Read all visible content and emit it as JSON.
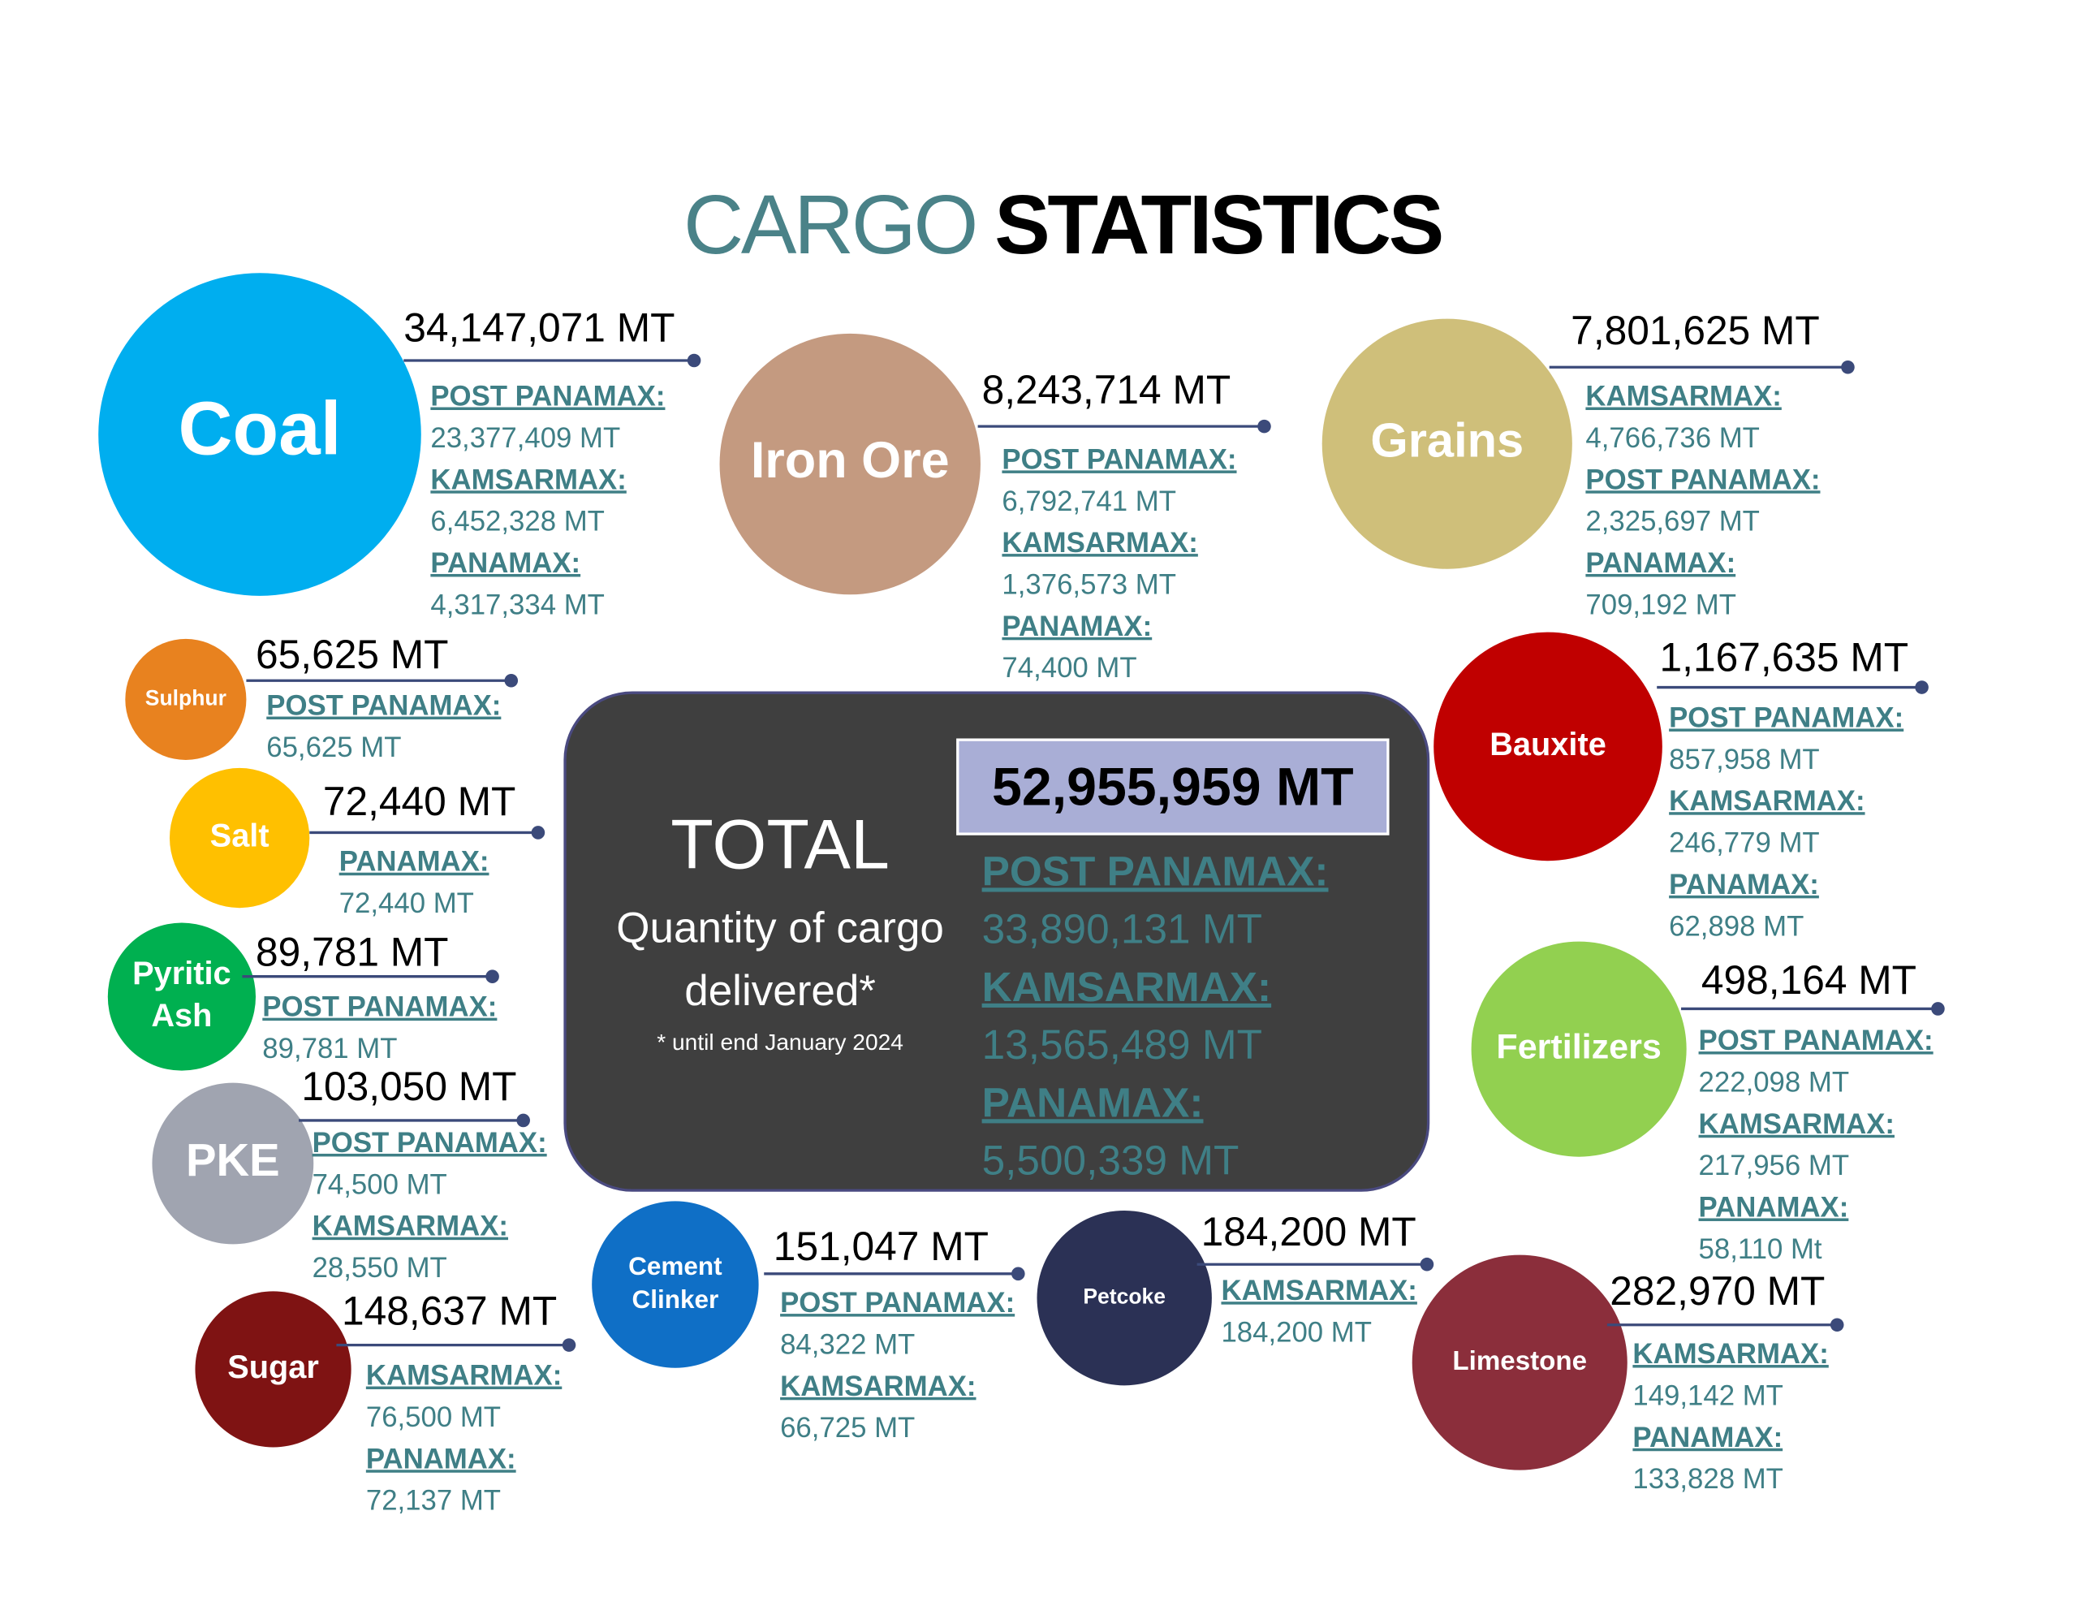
{
  "title": {
    "light": "CARGO",
    "bold": "STATISTICS"
  },
  "total": {
    "label": "TOTAL",
    "subtitle": [
      "Quantity of cargo",
      "delivered*"
    ],
    "note": "* until end January 2024",
    "amount": "52,955,959 MT",
    "breakdown": [
      {
        "class": "POST PANAMAX:",
        "amount": "33,890,131 MT"
      },
      {
        "class": "KAMSARMAX:",
        "amount": "13,565,489 MT"
      },
      {
        "class": "PANAMAX:",
        "amount": "5,500,339 MT"
      }
    ]
  },
  "cargos": [
    {
      "name": [
        "Coal"
      ],
      "total": "34,147,071 MT",
      "breakdown": [
        {
          "class": "POST PANAMAX:",
          "amount": "23,377,409 MT"
        },
        {
          "class": "KAMSARMAX:",
          "amount": "6,452,328 MT"
        },
        {
          "class": "PANAMAX:",
          "amount": "4,317,334 MT"
        }
      ]
    },
    {
      "name": [
        "Iron Ore"
      ],
      "total": "8,243,714 MT",
      "breakdown": [
        {
          "class": "POST PANAMAX:",
          "amount": "6,792,741 MT"
        },
        {
          "class": "KAMSARMAX:",
          "amount": "1,376,573 MT"
        },
        {
          "class": "PANAMAX:",
          "amount": "74,400 MT"
        }
      ]
    },
    {
      "name": [
        "Grains"
      ],
      "total": "7,801,625 MT",
      "breakdown": [
        {
          "class": "KAMSARMAX:",
          "amount": "4,766,736 MT"
        },
        {
          "class": "POST PANAMAX:",
          "amount": "2,325,697 MT"
        },
        {
          "class": "PANAMAX:",
          "amount": "709,192 MT"
        }
      ]
    },
    {
      "name": [
        "Sulphur"
      ],
      "total": "65,625 MT",
      "breakdown": [
        {
          "class": "POST PANAMAX:",
          "amount": "65,625 MT"
        }
      ]
    },
    {
      "name": [
        "Salt"
      ],
      "total": "72,440 MT",
      "breakdown": [
        {
          "class": "PANAMAX:",
          "amount": "72,440 MT"
        }
      ]
    },
    {
      "name": [
        "Pyritic",
        "Ash"
      ],
      "total": "89,781 MT",
      "breakdown": [
        {
          "class": "POST PANAMAX:",
          "amount": "89,781 MT"
        }
      ]
    },
    {
      "name": [
        "PKE"
      ],
      "total": "103,050 MT",
      "breakdown": [
        {
          "class": "POST PANAMAX:",
          "amount": "74,500 MT"
        },
        {
          "class": "KAMSARMAX:",
          "amount": "28,550 MT"
        }
      ]
    },
    {
      "name": [
        "Sugar"
      ],
      "total": "148,637 MT",
      "breakdown": [
        {
          "class": "KAMSARMAX:",
          "amount": "76,500 MT"
        },
        {
          "class": "PANAMAX:",
          "amount": "72,137 MT"
        }
      ]
    },
    {
      "name": [
        "Cement",
        "Clinker"
      ],
      "total": "151,047 MT",
      "breakdown": [
        {
          "class": "POST PANAMAX:",
          "amount": "84,322 MT"
        },
        {
          "class": "KAMSARMAX:",
          "amount": "66,725 MT"
        }
      ]
    },
    {
      "name": [
        "Petcoke"
      ],
      "total": "184,200 MT",
      "breakdown": [
        {
          "class": "KAMSARMAX:",
          "amount": "184,200 MT"
        }
      ]
    },
    {
      "name": [
        "Limestone"
      ],
      "total": "282,970 MT",
      "breakdown": [
        {
          "class": "KAMSARMAX:",
          "amount": "149,142 MT"
        },
        {
          "class": "PANAMAX:",
          "amount": "133,828 MT"
        }
      ]
    },
    {
      "name": [
        "Bauxite"
      ],
      "total": "1,167,635 MT",
      "breakdown": [
        {
          "class": "POST PANAMAX:",
          "amount": "857,958 MT"
        },
        {
          "class": "KAMSARMAX:",
          "amount": "246,779 MT"
        },
        {
          "class": "PANAMAX:",
          "amount": "62,898 MT"
        }
      ]
    },
    {
      "name": [
        "Fertilizers"
      ],
      "total": "498,164 MT",
      "breakdown": [
        {
          "class": "POST PANAMAX:",
          "amount": "222,098 MT"
        },
        {
          "class": "KAMSARMAX:",
          "amount": "217,956 MT"
        },
        {
          "class": "PANAMAX:",
          "amount": "58,110 Mt"
        }
      ]
    }
  ]
}
